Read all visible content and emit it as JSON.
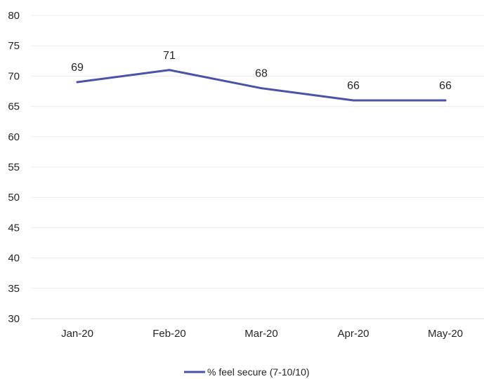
{
  "chart_data": {
    "type": "line",
    "categories": [
      "Jan-20",
      "Feb-20",
      "Mar-20",
      "Apr-20",
      "May-20"
    ],
    "series": [
      {
        "name": "% feel secure (7-10/10)",
        "values": [
          69,
          71,
          68,
          66,
          66
        ],
        "color": "#4a53a8"
      }
    ],
    "ylim": [
      30,
      80
    ],
    "yticks": [
      30,
      35,
      40,
      45,
      50,
      55,
      60,
      65,
      70,
      75,
      80
    ],
    "grid": true,
    "legend_position": "bottom",
    "data_labels": true
  }
}
